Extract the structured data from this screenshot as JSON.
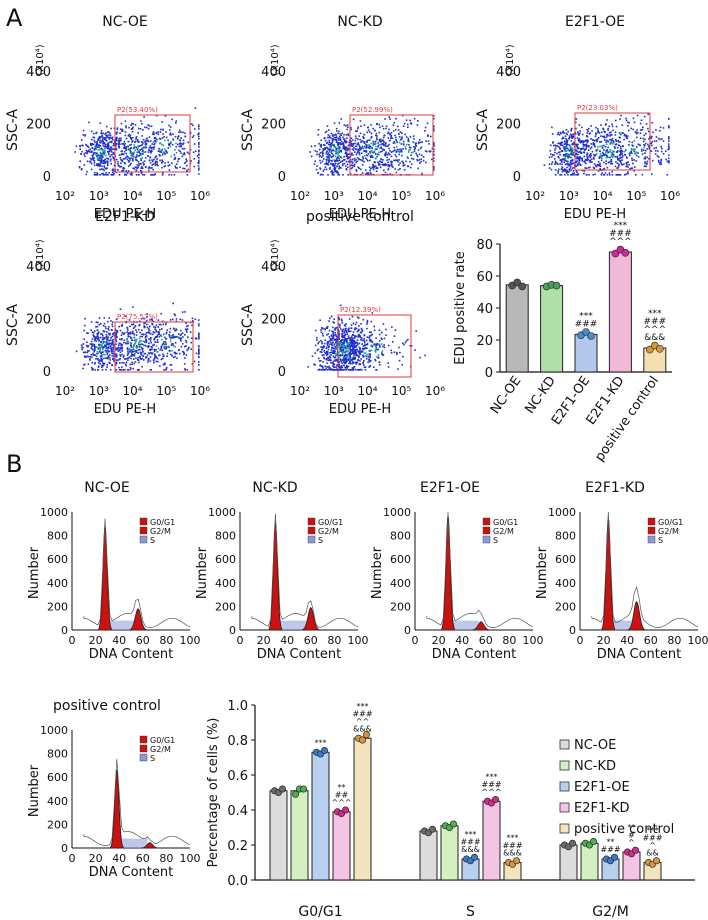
{
  "panels": {
    "a": "A",
    "b": "B"
  },
  "colors": {
    "dots": "#1f2fcf",
    "dots_dense": "#1aa09a",
    "gate": "#e23a3a",
    "histo_fill": "#cc1111",
    "s_phase": "#8a9ad8"
  },
  "chart_data": [
    {
      "type": "scatter",
      "title": "NC-OE",
      "xlabel": "EDU PE-H",
      "ylabel": "SSC-A",
      "y_multiplier": "(X10⁴)",
      "x_ticks": [
        "10²",
        "10³",
        "10⁴",
        "10⁵",
        "10⁶"
      ],
      "y_ticks": [
        "0",
        "200",
        "400"
      ],
      "gate_label": "P2(53.40%)",
      "gate_percent": 53.4
    },
    {
      "type": "scatter",
      "title": "NC-KD",
      "xlabel": "EDU PE-H",
      "ylabel": "SSC-A",
      "y_multiplier": "(X10⁴)",
      "x_ticks": [
        "10²",
        "10³",
        "10⁴",
        "10⁵",
        "10⁶"
      ],
      "y_ticks": [
        "0",
        "200",
        "400"
      ],
      "gate_label": "P2(52.99%)",
      "gate_percent": 52.99
    },
    {
      "type": "scatter",
      "title": "E2F1-OE",
      "xlabel": "EDU PE-H",
      "ylabel": "SSC-A",
      "y_multiplier": "(X10⁴)",
      "x_ticks": [
        "10²",
        "10³",
        "10⁴",
        "10⁵",
        "10⁶"
      ],
      "y_ticks": [
        "0",
        "200",
        "400"
      ],
      "gate_label": "P2(23.03%)",
      "gate_percent": 23.03
    },
    {
      "type": "scatter",
      "title": "E2F1-KD",
      "xlabel": "EDU PE-H",
      "ylabel": "SSC-A",
      "y_multiplier": "(X10⁴)",
      "x_ticks": [
        "10²",
        "10³",
        "10⁴",
        "10⁵",
        "10⁶"
      ],
      "y_ticks": [
        "0",
        "200",
        "400"
      ],
      "gate_label": "P2(75.57%)",
      "gate_percent": 75.57
    },
    {
      "type": "scatter",
      "title": "positive control",
      "xlabel": "EDU PE-H",
      "ylabel": "SSC-A",
      "y_multiplier": "(X10⁴)",
      "x_ticks": [
        "10²",
        "10³",
        "10⁴",
        "10⁵",
        "10⁶"
      ],
      "y_ticks": [
        "0",
        "200",
        "400"
      ],
      "gate_label": "P2(12.39%)",
      "gate_percent": 12.39
    },
    {
      "type": "bar",
      "title": "",
      "ylabel": "EDU positive rate",
      "xlabel": "",
      "ylim": [
        0,
        80
      ],
      "y_ticks": [
        "0",
        "20",
        "40",
        "60",
        "80"
      ],
      "categories": [
        "NC-OE",
        "NC-KD",
        "E2F1-OE",
        "E2F1-KD",
        "positive control"
      ],
      "values": [
        54.5,
        54.0,
        23.5,
        75.0,
        15.0
      ],
      "points": [
        [
          54.0,
          56.0,
          53.5
        ],
        [
          53.5,
          54.5,
          54.0
        ],
        [
          23.0,
          25.0,
          22.5
        ],
        [
          74.0,
          76.5,
          74.5
        ],
        [
          14.0,
          16.5,
          14.5
        ]
      ],
      "bar_colors": [
        "#b8b8b8",
        "#aee0a8",
        "#b3c8ec",
        "#f2b8d8",
        "#f2e0b0"
      ],
      "dot_colors": [
        "#555555",
        "#4aa05a",
        "#4a8ac8",
        "#d02a9a",
        "#d8963a"
      ],
      "annotations": [
        [],
        [],
        [
          "***",
          "###"
        ],
        [
          "***",
          "###",
          "^^^"
        ],
        [
          "***",
          "###",
          "^^^",
          "&&&"
        ]
      ]
    },
    {
      "type": "area",
      "title": "NC-OE",
      "xlabel": "DNA Content",
      "ylabel": "Number",
      "x_ticks": [
        "0",
        "20",
        "40",
        "60",
        "80",
        "100"
      ],
      "y_ticks": [
        "0",
        "200",
        "400",
        "600",
        "800",
        "1000"
      ],
      "legend": [
        "G0/G1",
        "G2/M",
        "S"
      ],
      "g1_peak": {
        "x": 28,
        "height": 880
      },
      "g2_peak": {
        "x": 56,
        "height": 180
      }
    },
    {
      "type": "area",
      "title": "NC-KD",
      "xlabel": "DNA Content",
      "ylabel": "Number",
      "x_ticks": [
        "0",
        "20",
        "40",
        "60",
        "80",
        "100"
      ],
      "y_ticks": [
        "0",
        "200",
        "400",
        "600",
        "800",
        "1000"
      ],
      "legend": [
        "G0/G1",
        "G2/M",
        "S"
      ],
      "g1_peak": {
        "x": 30,
        "height": 920
      },
      "g2_peak": {
        "x": 60,
        "height": 190
      }
    },
    {
      "type": "area",
      "title": "E2F1-OE",
      "xlabel": "DNA Content",
      "ylabel": "Number",
      "x_ticks": [
        "0",
        "20",
        "40",
        "60",
        "80",
        "100"
      ],
      "y_ticks": [
        "0",
        "200",
        "400",
        "600",
        "800",
        "1000"
      ],
      "legend": [
        "G0/G1",
        "G2/M",
        "S"
      ],
      "g1_peak": {
        "x": 28,
        "height": 970
      },
      "g2_peak": {
        "x": 56,
        "height": 70
      }
    },
    {
      "type": "area",
      "title": "E2F1-KD",
      "xlabel": "DNA Content",
      "ylabel": "Number",
      "x_ticks": [
        "0",
        "20",
        "40",
        "60",
        "80",
        "100"
      ],
      "y_ticks": [
        "0",
        "200",
        "400",
        "600",
        "800",
        "1000"
      ],
      "legend": [
        "G0/G1",
        "G2/M",
        "S"
      ],
      "g1_peak": {
        "x": 24,
        "height": 950
      },
      "g2_peak": {
        "x": 48,
        "height": 240
      }
    },
    {
      "type": "area",
      "title": "positive control",
      "xlabel": "DNA Content",
      "ylabel": "Number",
      "x_ticks": [
        "0",
        "20",
        "40",
        "60",
        "80",
        "100"
      ],
      "y_ticks": [
        "0",
        "200",
        "400",
        "600",
        "800",
        "1000"
      ],
      "legend": [
        "G0/G1",
        "G2/M",
        "S"
      ],
      "g1_peak": {
        "x": 38,
        "height": 660
      },
      "g2_peak": {
        "x": 66,
        "height": 45
      }
    },
    {
      "type": "bar",
      "title": "",
      "ylabel": "Percentage of cells (%)",
      "xlabel": "",
      "ylim": [
        0,
        1.0
      ],
      "y_ticks": [
        "0.0",
        "0.2",
        "0.4",
        "0.6",
        "0.8",
        "1.0"
      ],
      "groups": [
        "G0/G1",
        "S",
        "G2/M"
      ],
      "series": [
        {
          "name": "NC-OE",
          "values": [
            0.51,
            0.28,
            0.2
          ],
          "points": [
            [
              0.51,
              0.5,
              0.52
            ],
            [
              0.28,
              0.27,
              0.29
            ],
            [
              0.2,
              0.19,
              0.21
            ]
          ]
        },
        {
          "name": "NC-KD",
          "values": [
            0.51,
            0.31,
            0.21
          ],
          "points": [
            [
              0.49,
              0.52,
              0.52
            ],
            [
              0.31,
              0.3,
              0.32
            ],
            [
              0.21,
              0.2,
              0.22
            ]
          ]
        },
        {
          "name": "E2F1-OE",
          "values": [
            0.73,
            0.12,
            0.12
          ],
          "points": [
            [
              0.73,
              0.72,
              0.74
            ],
            [
              0.12,
              0.11,
              0.13
            ],
            [
              0.12,
              0.11,
              0.13
            ]
          ]
        },
        {
          "name": "E2F1-KD",
          "values": [
            0.39,
            0.45,
            0.16
          ],
          "points": [
            [
              0.39,
              0.38,
              0.4
            ],
            [
              0.45,
              0.44,
              0.46
            ],
            [
              0.16,
              0.15,
              0.17
            ]
          ]
        },
        {
          "name": "positive control",
          "values": [
            0.81,
            0.1,
            0.1
          ],
          "points": [
            [
              0.81,
              0.8,
              0.83
            ],
            [
              0.1,
              0.09,
              0.11
            ],
            [
              0.1,
              0.09,
              0.11
            ]
          ]
        }
      ],
      "bar_colors": [
        "#dcdcdc",
        "#d4f0c0",
        "#b8d0f0",
        "#f4c4e4",
        "#f2e4bc"
      ],
      "dot_colors": [
        "#6a6a6a",
        "#4ab04a",
        "#3a7ac8",
        "#d42a8a",
        "#d8963a"
      ],
      "annotations": [
        [
          [],
          [],
          [
            "***"
          ],
          [
            "**",
            "##",
            "^^^"
          ],
          [
            "***",
            "###",
            "^^",
            "&&&"
          ]
        ],
        [
          [],
          [],
          [
            "***",
            "###",
            "&&&"
          ],
          [
            "***",
            "###",
            "^^^"
          ],
          [
            "***",
            "###",
            "&&&"
          ]
        ],
        [
          [],
          [],
          [
            "**",
            "###"
          ],
          [
            "**",
            "#",
            "^"
          ],
          [
            "***",
            "###",
            "^",
            "&&"
          ]
        ]
      ]
    }
  ]
}
